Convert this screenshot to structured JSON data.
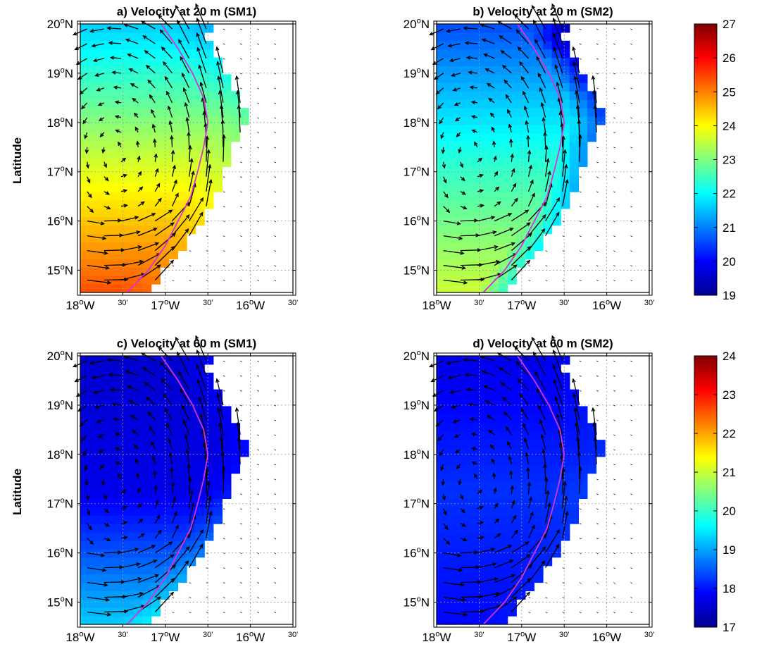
{
  "figure": {
    "ylabel": "Latitude",
    "x_ticks": [
      "18",
      "W",
      "30'",
      "17",
      "W",
      "30'",
      "16",
      "W",
      "30'"
    ],
    "y_ticks": [
      "20",
      "19",
      "18",
      "17",
      "16",
      "15"
    ],
    "degree_symbol": "o",
    "north": "N"
  },
  "chart_data": [
    {
      "type": "heatmap",
      "panel": "a",
      "title": "a) Velocity at 20 m (SM1)",
      "xlim": [
        -18.0,
        -15.5
      ],
      "ylim": [
        14.55,
        20.0
      ],
      "x_tick_values": [
        -18.0,
        -17.5,
        -17.0,
        -16.5,
        -16.0,
        -15.5
      ],
      "y_tick_values": [
        20,
        19,
        18,
        17,
        16,
        15
      ],
      "colorbar": {
        "min": 19,
        "max": 27,
        "ticks": [
          27,
          26,
          25,
          24,
          23,
          22,
          21,
          20,
          19
        ]
      },
      "field": {
        "north": 21.6,
        "mid": 23.6,
        "south": 25.4,
        "shelf_offset": -0.4
      },
      "grid": true,
      "vectors": "velocity arrows"
    },
    {
      "type": "heatmap",
      "panel": "b",
      "title": "b) Velocity at 20 m (SM2)",
      "xlim": [
        -18.0,
        -15.5
      ],
      "ylim": [
        14.55,
        20.0
      ],
      "x_tick_values": [
        -18.0,
        -17.5,
        -17.0,
        -16.5,
        -16.0,
        -15.5
      ],
      "y_tick_values": [
        20,
        19,
        18,
        17,
        16,
        15
      ],
      "colorbar": {
        "min": 19,
        "max": 27,
        "ticks": [
          27,
          26,
          25,
          24,
          23,
          22,
          21,
          20,
          19
        ]
      },
      "field": {
        "north": 20.6,
        "mid": 22.3,
        "south": 23.6,
        "shelf_offset": -2.4
      },
      "grid": true,
      "vectors": "velocity arrows"
    },
    {
      "type": "heatmap",
      "panel": "c",
      "title": "c) Velocity at 60 m (SM1)",
      "xlim": [
        -18.0,
        -15.5
      ],
      "ylim": [
        14.55,
        20.0
      ],
      "x_tick_values": [
        -18.0,
        -17.5,
        -17.0,
        -16.5,
        -16.0,
        -15.5
      ],
      "y_tick_values": [
        20,
        19,
        18,
        17,
        16,
        15
      ],
      "colorbar": {
        "min": 17,
        "max": 24,
        "ticks": [
          24,
          23,
          22,
          21,
          20,
          19,
          18,
          17
        ]
      },
      "field": {
        "north": 17.5,
        "mid": 17.7,
        "south": 19.3,
        "shelf_offset": 0.6
      },
      "grid": true,
      "vectors": "velocity arrows"
    },
    {
      "type": "heatmap",
      "panel": "d",
      "title": "d) Velocity at 60 m (SM2)",
      "xlim": [
        -18.0,
        -15.5
      ],
      "ylim": [
        14.55,
        20.0
      ],
      "x_tick_values": [
        -18.0,
        -17.5,
        -17.0,
        -16.5,
        -16.0,
        -15.5
      ],
      "y_tick_values": [
        20,
        19,
        18,
        17,
        16,
        15
      ],
      "colorbar": {
        "min": 17,
        "max": 24,
        "ticks": [
          24,
          23,
          22,
          21,
          20,
          19,
          18,
          17
        ]
      },
      "field": {
        "north": 17.7,
        "mid": 18.2,
        "south": 17.9,
        "shelf_offset": 0.2
      },
      "grid": true,
      "vectors": "velocity arrows"
    }
  ],
  "colors": {
    "frame": "#000000",
    "grid": "#9a9a9a",
    "isobath": "#d633d6",
    "arrow": "#000000",
    "land": "#ffffff"
  }
}
